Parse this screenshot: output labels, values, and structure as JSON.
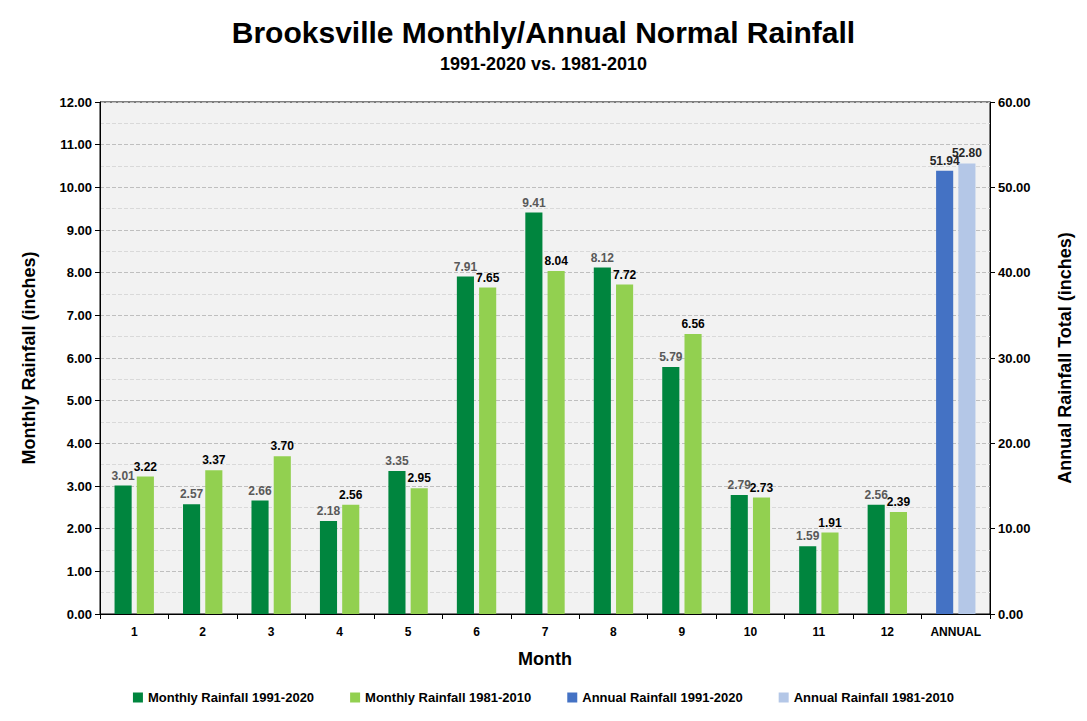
{
  "chart_data": {
    "type": "bar",
    "title": "Brooksville Monthly/Annual Normal Rainfall",
    "subtitle": "1991-2020 vs. 1981-2010",
    "x_label": "Month",
    "y_label": "Monthly Rainfall (inches)",
    "y2_label": "Annual Rainfall Total (inches)",
    "categories": [
      "1",
      "2",
      "3",
      "4",
      "5",
      "6",
      "7",
      "8",
      "9",
      "10",
      "11",
      "12",
      "ANNUAL"
    ],
    "ylim": [
      0,
      12
    ],
    "yticks": [
      {
        "value": 0,
        "label": "0.00"
      },
      {
        "value": 1,
        "label": "1.00"
      },
      {
        "value": 2,
        "label": "2.00"
      },
      {
        "value": 3,
        "label": "3.00"
      },
      {
        "value": 4,
        "label": "4.00"
      },
      {
        "value": 5,
        "label": "5.00"
      },
      {
        "value": 6,
        "label": "6.00"
      },
      {
        "value": 7,
        "label": "7.00"
      },
      {
        "value": 8,
        "label": "8.00"
      },
      {
        "value": 9,
        "label": "9.00"
      },
      {
        "value": 10,
        "label": "10.00"
      },
      {
        "value": 11,
        "label": "11.00"
      },
      {
        "value": 12,
        "label": "12.00"
      }
    ],
    "y2lim": [
      0,
      60
    ],
    "y2ticks": [
      {
        "value": 0,
        "label": "0.00"
      },
      {
        "value": 10,
        "label": "10.00"
      },
      {
        "value": 20,
        "label": "20.00"
      },
      {
        "value": 30,
        "label": "30.00"
      },
      {
        "value": 40,
        "label": "40.00"
      },
      {
        "value": 50,
        "label": "50.00"
      },
      {
        "value": 60,
        "label": "60.00"
      }
    ],
    "grid": true,
    "legend": "bottom",
    "data_labels": true,
    "series": [
      {
        "name": "Monthly Rainfall 1991-2020",
        "color": "#00853E",
        "values": [
          3.01,
          2.57,
          2.66,
          2.18,
          3.35,
          7.91,
          9.41,
          8.12,
          5.79,
          2.79,
          1.59,
          2.56,
          null
        ],
        "value_labels": [
          "3.01",
          "2.57",
          "2.66",
          "2.18",
          "3.35",
          "7.91",
          "9.41",
          "8.12",
          "5.79",
          "2.79",
          "1.59",
          "2.56",
          null
        ]
      },
      {
        "name": "Monthly Rainfall 1981-2010",
        "color": "#92D050",
        "values": [
          3.22,
          3.37,
          3.7,
          2.56,
          2.95,
          7.65,
          8.04,
          7.72,
          6.56,
          2.73,
          1.91,
          2.39,
          null
        ],
        "value_labels": [
          "3.22",
          "3.37",
          "3.70",
          "2.56",
          "2.95",
          "7.65",
          "8.04",
          "7.72",
          "6.56",
          "2.73",
          "1.91",
          "2.39",
          null
        ]
      },
      {
        "name": "Annual Rainfall 1991-2020",
        "color": "#4472C4",
        "axis": "y2",
        "values": [
          null,
          null,
          null,
          null,
          null,
          null,
          null,
          null,
          null,
          null,
          null,
          null,
          51.94
        ],
        "value_labels": [
          null,
          null,
          null,
          null,
          null,
          null,
          null,
          null,
          null,
          null,
          null,
          null,
          "51.94"
        ]
      },
      {
        "name": "Annual Rainfall 1981-2010",
        "color": "#B4C7E7",
        "axis": "y2",
        "values": [
          null,
          null,
          null,
          null,
          null,
          null,
          null,
          null,
          null,
          null,
          null,
          null,
          52.8
        ],
        "value_labels": [
          null,
          null,
          null,
          null,
          null,
          null,
          null,
          null,
          null,
          null,
          null,
          null,
          "52.80"
        ]
      }
    ]
  }
}
